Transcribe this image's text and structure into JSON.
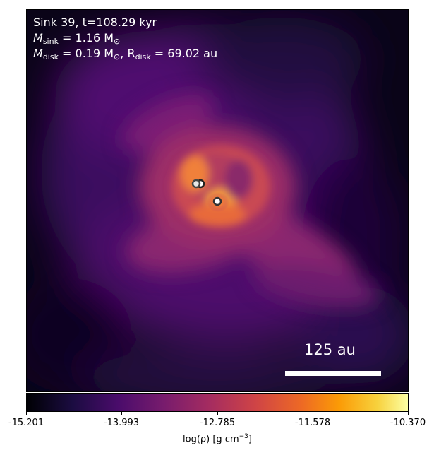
{
  "header": {
    "sink_line": "Sink 39, t=108.29 kyr",
    "msink_symbol": "M",
    "msink_sub": "sink",
    "msink_value": " = 1.16 M",
    "msink_sun": "⊙",
    "mdisk_symbol": "M",
    "mdisk_sub": "disk",
    "mdisk_value": " = 0.19 M",
    "mdisk_sun": "⊙",
    "rdisk_prefix": ", R",
    "rdisk_sub": "disk",
    "rdisk_value": " = 69.02 au"
  },
  "scale_bar": {
    "label": "125 au"
  },
  "colorbar": {
    "ticks": [
      "-15.201",
      "-13.993",
      "-12.785",
      "-11.578",
      "-10.370"
    ],
    "label_main": "log(ρ) [g cm",
    "label_sup": "−3",
    "label_end": "]"
  },
  "colors": {
    "accent": "#f28a2a",
    "background": "#0a0418"
  }
}
